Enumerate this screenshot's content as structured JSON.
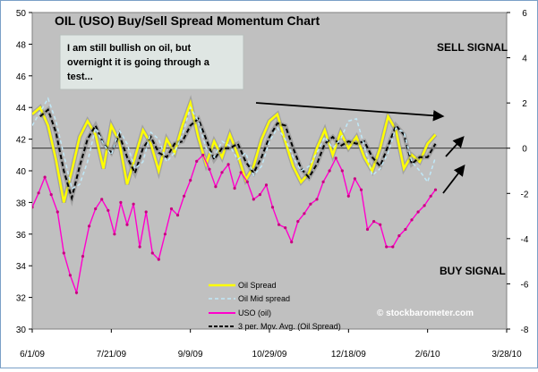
{
  "chart_data": {
    "type": "line",
    "title": "OIL (USO) Buy/Sell Spread Momentum Chart",
    "x_tick_labels": [
      "6/1/09",
      "7/21/09",
      "9/9/09",
      "10/29/09",
      "12/18/09",
      "2/6/10",
      "3/28/10"
    ],
    "x_range": [
      0,
      300
    ],
    "left_axis": {
      "range": [
        30,
        50
      ],
      "ticks": [
        "30",
        "32",
        "34",
        "36",
        "38",
        "40",
        "42",
        "44",
        "46",
        "48",
        "50"
      ]
    },
    "right_axis": {
      "range": [
        -8,
        6
      ],
      "ticks": [
        "-8",
        "-6",
        "-4",
        "-2",
        "0",
        "2",
        "4",
        "6"
      ]
    },
    "annotations": {
      "note": [
        "I am still bullish on oil, but",
        "overnight it is going through a",
        "test..."
      ],
      "sell_signal": "SELL SIGNAL",
      "buy_signal": "BUY SIGNAL",
      "watermark": "© stockbarometer.com"
    },
    "legend": {
      "placement": "bottom-center",
      "entries": [
        "Oil Spread",
        "Oil Mid spread",
        "USO (oil)",
        "3 per. Mov. Avg. (Oil Spread)"
      ]
    },
    "series": [
      {
        "name": "Oil Spread",
        "axis": "right",
        "color": "#ffff00",
        "style": "solid",
        "x": [
          0,
          5,
          10,
          15,
          20,
          25,
          30,
          35,
          40,
          45,
          50,
          55,
          60,
          65,
          70,
          75,
          80,
          85,
          90,
          95,
          100,
          105,
          110,
          115,
          120,
          125,
          130,
          135,
          140,
          145,
          150,
          155,
          160,
          165,
          170,
          175,
          180,
          185,
          190,
          195,
          200,
          205,
          210,
          215,
          220,
          225,
          230,
          235,
          240,
          245,
          250,
          255
        ],
        "y": [
          1.5,
          1.8,
          1.0,
          -0.5,
          -2.4,
          -1.0,
          0.5,
          1.2,
          0.6,
          -0.9,
          1.0,
          0.3,
          -1.6,
          -0.4,
          0.8,
          0.2,
          -1.0,
          0.4,
          -0.2,
          1.0,
          2.0,
          0.5,
          -0.7,
          0.3,
          -0.4,
          0.6,
          -0.3,
          -1.4,
          -0.8,
          0.4,
          1.2,
          1.5,
          0.3,
          -0.8,
          -1.5,
          -1.1,
          0.0,
          0.8,
          -0.3,
          0.7,
          0.0,
          0.5,
          -0.4,
          -1.0,
          0.0,
          1.4,
          0.8,
          -0.9,
          -0.3,
          -0.6,
          0.2,
          0.6
        ]
      },
      {
        "name": "3 per. Mov. Avg. (Oil Spread)",
        "axis": "right",
        "color": "#000000",
        "style": "dashed",
        "x": [
          5,
          10,
          15,
          20,
          25,
          30,
          35,
          40,
          45,
          50,
          55,
          60,
          65,
          70,
          75,
          80,
          85,
          90,
          95,
          100,
          105,
          110,
          115,
          120,
          125,
          130,
          135,
          140,
          145,
          150,
          155,
          160,
          165,
          170,
          175,
          180,
          185,
          190,
          195,
          200,
          205,
          210,
          215,
          220,
          225,
          230,
          235,
          240,
          245,
          250,
          255
        ],
        "y": [
          1.4,
          1.7,
          0.7,
          -1.0,
          -2.2,
          -0.8,
          0.4,
          1.0,
          0.2,
          -0.2,
          0.6,
          -0.4,
          -1.1,
          0.0,
          0.5,
          -0.2,
          -0.4,
          0.2,
          0.3,
          1.0,
          1.3,
          0.4,
          -0.5,
          0.0,
          0.0,
          0.2,
          -0.6,
          -1.1,
          -0.4,
          0.5,
          1.1,
          1.0,
          0.0,
          -0.9,
          -1.3,
          -0.7,
          0.2,
          0.5,
          0.1,
          0.3,
          0.2,
          0.3,
          -0.4,
          -0.8,
          0.1,
          1.0,
          0.6,
          -0.7,
          -0.4,
          -0.4,
          0.2
        ]
      },
      {
        "name": "Oil Mid spread",
        "axis": "right",
        "color": "#bfe8f8",
        "style": "dashed",
        "x": [
          0,
          5,
          10,
          15,
          20,
          25,
          30,
          35,
          40,
          45,
          50,
          55,
          60,
          65,
          70,
          75,
          80,
          85,
          90,
          95,
          100,
          105,
          110,
          115,
          120,
          125,
          130,
          135,
          140,
          145,
          150,
          155,
          160,
          165,
          170,
          175,
          180,
          185,
          190,
          195,
          200,
          205,
          210,
          215,
          220,
          225,
          230,
          235,
          240,
          245,
          250,
          255
        ],
        "y": [
          1.0,
          1.6,
          2.2,
          1.2,
          -0.3,
          -1.8,
          -1.6,
          -0.6,
          0.9,
          0.2,
          -0.3,
          0.8,
          0.2,
          -0.9,
          -0.6,
          0.7,
          0.4,
          -0.6,
          -0.2,
          0.6,
          1.8,
          1.2,
          0.0,
          -0.4,
          0.3,
          0.1,
          -0.5,
          -0.2,
          -1.2,
          -0.8,
          0.3,
          0.9,
          0.4,
          -0.4,
          -1.0,
          -0.8,
          -0.2,
          0.5,
          0.0,
          0.4,
          1.2,
          1.3,
          0.1,
          -1.2,
          -0.9,
          -0.2,
          0.9,
          0.7,
          -0.6,
          -1.0,
          -1.5,
          -0.4
        ]
      },
      {
        "name": "USO (oil)",
        "axis": "left",
        "color": "#ff00cc",
        "style": "solid",
        "x": [
          0,
          4,
          8,
          12,
          16,
          20,
          24,
          28,
          32,
          36,
          40,
          44,
          48,
          52,
          56,
          60,
          64,
          68,
          72,
          76,
          80,
          84,
          88,
          92,
          96,
          100,
          104,
          108,
          112,
          116,
          120,
          124,
          128,
          132,
          136,
          140,
          144,
          148,
          152,
          156,
          160,
          164,
          168,
          172,
          176,
          180,
          184,
          188,
          192,
          196,
          200,
          204,
          208,
          212,
          216,
          220,
          224,
          228,
          232,
          236,
          240,
          244,
          248,
          252,
          255
        ],
        "y": [
          37.7,
          38.6,
          39.6,
          38.5,
          37.4,
          34.8,
          33.4,
          32.3,
          34.6,
          36.5,
          37.6,
          38.2,
          37.5,
          36.0,
          38.0,
          36.6,
          37.9,
          35.2,
          37.4,
          34.8,
          34.4,
          36.0,
          37.6,
          37.2,
          38.4,
          39.4,
          40.6,
          41.0,
          40.1,
          39.0,
          39.9,
          40.4,
          38.9,
          39.9,
          39.3,
          38.2,
          38.5,
          39.1,
          37.7,
          36.6,
          36.4,
          35.5,
          36.8,
          37.3,
          37.9,
          38.2,
          39.3,
          40.0,
          40.8,
          40.0,
          38.4,
          39.5,
          38.8,
          36.3,
          36.8,
          36.6,
          35.2,
          35.2,
          35.9,
          36.3,
          36.9,
          37.4,
          37.8,
          38.4,
          38.8
        ]
      }
    ]
  }
}
